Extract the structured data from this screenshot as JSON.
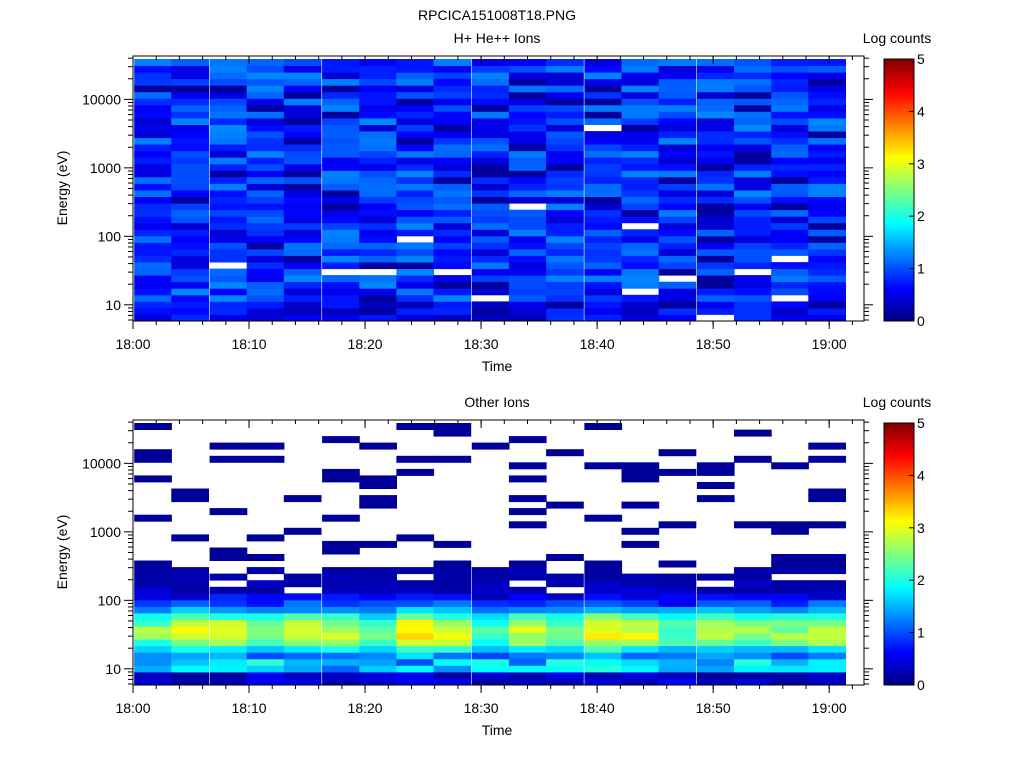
{
  "figure_title": "RPCICA151008T18.PNG",
  "chart_data": [
    {
      "type": "heatmap",
      "title": "H+ He++ Ions",
      "xlabel": "Time",
      "ylabel": "Energy (eV)",
      "x_ticks": [
        "18:00",
        "18:10",
        "18:20",
        "18:30",
        "18:40",
        "18:50",
        "19:00"
      ],
      "x_range": [
        "18:00",
        "19:03"
      ],
      "y_scale": "log",
      "y_ticks": [
        "10",
        "100",
        "1000",
        "10000"
      ],
      "y_range": [
        5.8,
        43000
      ],
      "time_bins": [
        "18:01.7",
        "18:04.9",
        "18:08.2",
        "18:11.4",
        "18:14.6",
        "18:17.9",
        "18:21.1",
        "18:24.3",
        "18:27.5",
        "18:30.8",
        "18:34.0",
        "18:37.2",
        "18:40.5",
        "18:43.7",
        "18:46.9",
        "18:50.2",
        "18:53.4",
        "18:56.6",
        "18:59.8"
      ],
      "energy_channels": 40,
      "description_of_values": "Mostly 0.3–1.3 log counts across all energies; white = no counts",
      "base_level": 0.85,
      "variability": 0.45,
      "low_energy_level": 0.45,
      "white_gaps": [
        [
          2,
          8
        ],
        [
          5,
          7
        ],
        [
          6,
          7
        ],
        [
          7,
          12
        ],
        [
          8,
          7
        ],
        [
          9,
          3
        ],
        [
          10,
          17
        ],
        [
          12,
          29
        ],
        [
          13,
          14
        ],
        [
          13,
          4
        ],
        [
          14,
          6
        ],
        [
          15,
          0
        ],
        [
          16,
          7
        ],
        [
          17,
          9
        ],
        [
          17,
          3
        ],
        [
          19,
          1
        ],
        [
          20,
          0
        ],
        [
          20,
          7
        ],
        [
          21,
          0
        ]
      ],
      "colorbar": {
        "label": "Log counts",
        "ticks": [
          "0",
          "1",
          "2",
          "3",
          "4",
          "5"
        ],
        "range": [
          0,
          5
        ]
      }
    },
    {
      "type": "heatmap",
      "title": "Other Ions",
      "xlabel": "Time",
      "ylabel": "Energy (eV)",
      "x_ticks": [
        "18:00",
        "18:10",
        "18:20",
        "18:30",
        "18:40",
        "18:50",
        "19:00"
      ],
      "x_range": [
        "18:00",
        "19:03"
      ],
      "y_scale": "log",
      "y_ticks": [
        "10",
        "100",
        "1000",
        "10000"
      ],
      "y_range": [
        5.8,
        43000
      ],
      "time_bins": [
        "18:01.7",
        "18:04.9",
        "18:08.2",
        "18:11.4",
        "18:14.6",
        "18:17.9",
        "18:21.1",
        "18:24.3",
        "18:27.5",
        "18:30.8",
        "18:34.0",
        "18:37.2",
        "18:40.5",
        "18:43.7",
        "18:46.9",
        "18:50.2",
        "18:53.4",
        "18:56.6",
        "18:59.8"
      ],
      "energy_channels": 40,
      "description_of_values": "Peak ~2.5–3.3 log counts near 20–60 eV; sparse single counts (~0.1) above 300 eV",
      "peak_energy_eV": 35,
      "peak_level": [
        2.6,
        3.0,
        3.0,
        2.6,
        2.9,
        2.8,
        2.5,
        3.4,
        3.1,
        2.2,
        2.9,
        2.6,
        3.2,
        3.0,
        2.4,
        2.8,
        2.6,
        2.6,
        2.9
      ],
      "colorbar": {
        "label": "Log counts",
        "ticks": [
          "0",
          "1",
          "2",
          "3",
          "4",
          "5"
        ],
        "range": [
          0,
          5
        ]
      }
    }
  ]
}
